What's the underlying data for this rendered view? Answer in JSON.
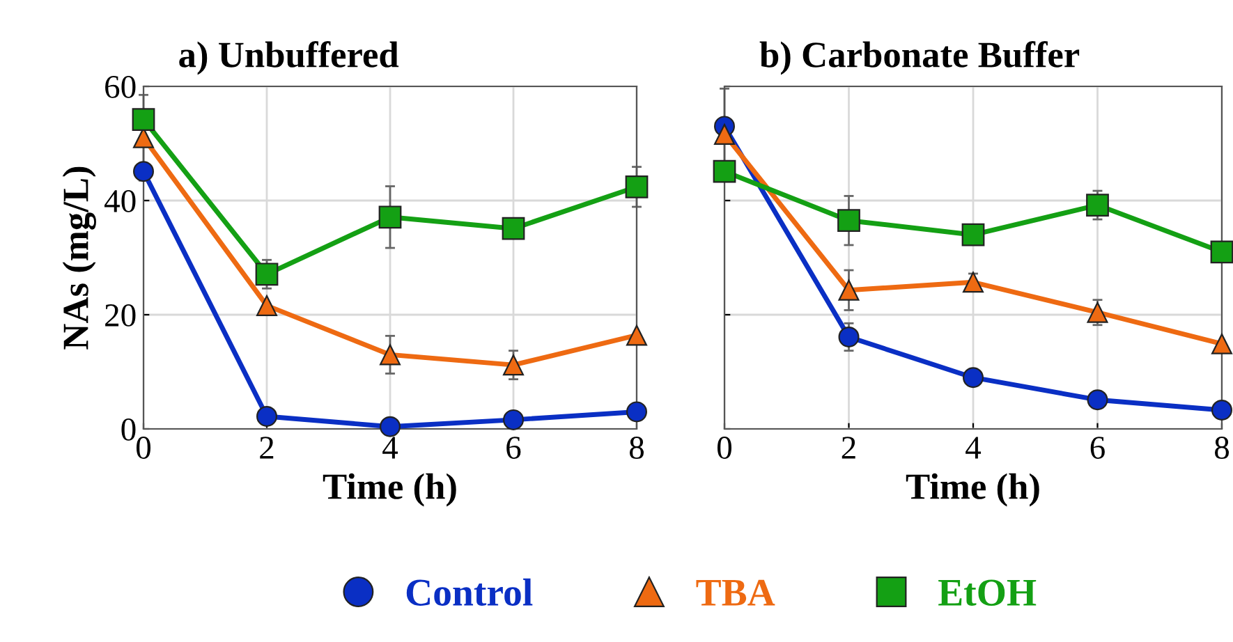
{
  "chart_data": [
    {
      "type": "line",
      "title": "a) Unbuffered",
      "xlabel": "Time (h)",
      "ylabel": "NAs (mg/L)",
      "x": [
        0,
        2,
        4,
        6,
        8
      ],
      "xlim": [
        0,
        8
      ],
      "xticks": [
        0,
        2,
        4,
        6,
        8
      ],
      "ylim": [
        0,
        60
      ],
      "yticks": [
        0,
        20,
        40,
        60
      ],
      "grid": true,
      "legend": "bottom",
      "series": [
        {
          "name": "Control",
          "color": "#0a2fc4",
          "marker": "circle",
          "values": [
            45.1,
            2.2,
            0.4,
            1.6,
            3.0
          ],
          "errors": [
            null,
            null,
            null,
            null,
            null
          ]
        },
        {
          "name": "TBA",
          "color": "#ee6a12",
          "marker": "triangle",
          "values": [
            51.0,
            21.6,
            13.0,
            11.2,
            16.4
          ],
          "errors": [
            7.5,
            null,
            3.3,
            2.5,
            null
          ]
        },
        {
          "name": "EtOH",
          "color": "#14a014",
          "marker": "square",
          "values": [
            54.2,
            27.1,
            37.1,
            35.1,
            42.4
          ],
          "errors": [
            null,
            2.5,
            5.4,
            null,
            3.5
          ]
        }
      ]
    },
    {
      "type": "line",
      "title": "b) Carbonate Buffer",
      "xlabel": "Time (h)",
      "x": [
        0,
        2,
        4,
        6,
        8
      ],
      "xlim": [
        0,
        8
      ],
      "xticks": [
        0,
        2,
        4,
        6,
        8
      ],
      "ylim": [
        0,
        60
      ],
      "yticks": [
        0,
        20,
        40,
        60
      ],
      "tick_labels": "x",
      "grid": true,
      "series": [
        {
          "name": "Control",
          "color": "#0a2fc4",
          "marker": "circle",
          "values": [
            53.0,
            16.1,
            9.0,
            5.1,
            3.3
          ],
          "errors": [
            null,
            2.4,
            null,
            null,
            null
          ]
        },
        {
          "name": "TBA",
          "color": "#ee6a12",
          "marker": "triangle",
          "values": [
            51.6,
            24.3,
            25.7,
            20.4,
            14.9
          ],
          "errors": [
            8,
            3.5,
            1.5,
            2.2,
            null
          ]
        },
        {
          "name": "EtOH",
          "color": "#14a014",
          "marker": "square",
          "values": [
            45.1,
            36.5,
            34.0,
            39.2,
            31.0
          ],
          "errors": [
            null,
            4.3,
            null,
            2.5,
            null
          ]
        }
      ]
    }
  ]
}
